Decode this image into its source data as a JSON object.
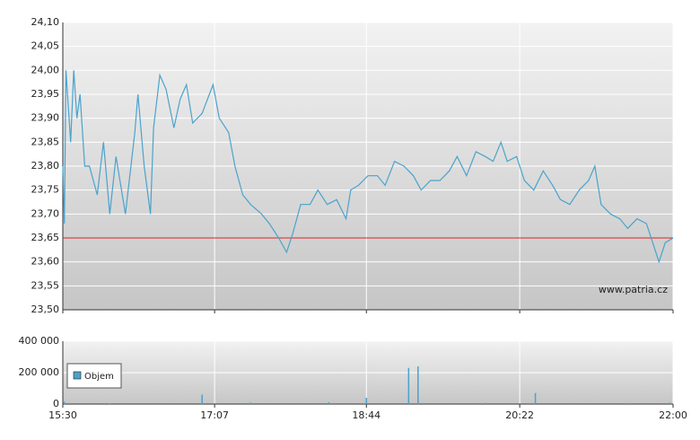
{
  "chart_data": [
    {
      "type": "line",
      "x": [
        "15:30",
        "15:31",
        "15:32",
        "15:35",
        "15:37",
        "15:39",
        "15:41",
        "15:44",
        "15:47",
        "15:52",
        "15:56",
        "16:00",
        "16:04",
        "16:10",
        "16:16",
        "16:18",
        "16:22",
        "16:26",
        "16:28",
        "16:32",
        "16:36",
        "16:41",
        "16:45",
        "16:49",
        "16:53",
        "16:59",
        "17:06",
        "17:10",
        "17:16",
        "17:20",
        "17:25",
        "17:30",
        "17:37",
        "17:42",
        "17:48",
        "17:53",
        "17:57",
        "18:02",
        "18:08",
        "18:13",
        "18:19",
        "18:25",
        "18:31",
        "18:34",
        "18:39",
        "18:45",
        "18:51",
        "18:56",
        "19:02",
        "19:08",
        "19:14",
        "19:19",
        "19:25",
        "19:31",
        "19:37",
        "19:42",
        "19:48",
        "19:54",
        "20:00",
        "20:05",
        "20:10",
        "20:14",
        "20:20",
        "20:25",
        "20:31",
        "20:37",
        "20:43",
        "20:48",
        "20:54",
        "21:00",
        "21:06",
        "21:10",
        "21:14",
        "21:20",
        "21:26",
        "21:31",
        "21:37",
        "21:43",
        "21:47",
        "21:51",
        "21:55",
        "22:00"
      ],
      "values": [
        23.8,
        23.68,
        24.0,
        23.85,
        24.0,
        23.9,
        23.95,
        23.8,
        23.8,
        23.74,
        23.85,
        23.7,
        23.82,
        23.7,
        23.87,
        23.95,
        23.8,
        23.7,
        23.88,
        23.99,
        23.96,
        23.88,
        23.94,
        23.97,
        23.89,
        23.91,
        23.97,
        23.9,
        23.87,
        23.8,
        23.74,
        23.72,
        23.7,
        23.68,
        23.65,
        23.62,
        23.66,
        23.72,
        23.72,
        23.75,
        23.72,
        23.73,
        23.69,
        23.75,
        23.76,
        23.78,
        23.78,
        23.76,
        23.81,
        23.8,
        23.78,
        23.75,
        23.77,
        23.77,
        23.79,
        23.82,
        23.78,
        23.83,
        23.82,
        23.81,
        23.85,
        23.81,
        23.82,
        23.77,
        23.75,
        23.79,
        23.76,
        23.73,
        23.72,
        23.75,
        23.77,
        23.8,
        23.72,
        23.7,
        23.69,
        23.67,
        23.69,
        23.68,
        23.64,
        23.6,
        23.64,
        23.65
      ],
      "color": "#4aa3cc",
      "ylim": [
        23.5,
        24.1
      ],
      "yticks": [
        {
          "value": 23.5,
          "label": "23,50"
        },
        {
          "value": 23.55,
          "label": "23,55"
        },
        {
          "value": 23.6,
          "label": "23,60"
        },
        {
          "value": 23.65,
          "label": "23,65"
        },
        {
          "value": 23.7,
          "label": "23,70"
        },
        {
          "value": 23.75,
          "label": "23,75"
        },
        {
          "value": 23.8,
          "label": "23,80"
        },
        {
          "value": 23.85,
          "label": "23,85"
        },
        {
          "value": 23.9,
          "label": "23,90"
        },
        {
          "value": 23.95,
          "label": "23,95"
        },
        {
          "value": 24.0,
          "label": "24,00"
        },
        {
          "value": 24.05,
          "label": "24,05"
        },
        {
          "value": 24.1,
          "label": "24,10"
        }
      ],
      "xlim": [
        "15:30",
        "22:00"
      ],
      "xticks": [
        "15:30",
        "17:07",
        "18:44",
        "20:22",
        "22:00"
      ],
      "reference_line": {
        "value": 23.65,
        "color": "#dd2222"
      },
      "annotation": "www.patria.cz",
      "grid": true
    },
    {
      "type": "bar",
      "x": [
        "15:31",
        "16:00",
        "16:59",
        "17:30",
        "18:20",
        "18:44",
        "19:11",
        "19:17",
        "20:00",
        "20:32",
        "21:30",
        "21:58"
      ],
      "series": [
        {
          "name": "Objem",
          "color": "#4aa3cc",
          "values": [
            15000,
            5000,
            60000,
            10000,
            12000,
            40000,
            230000,
            240000,
            8000,
            70000,
            6000,
            10000
          ]
        }
      ],
      "ylim": [
        0,
        400000
      ],
      "yticks": [
        0,
        {
          "value": 200000,
          "label": "200 000"
        },
        {
          "value": 400000,
          "label": "400 000"
        }
      ],
      "xlim": [
        "15:30",
        "22:00"
      ],
      "xticks": [
        "15:30",
        "17:07",
        "18:44",
        "20:22",
        "22:00"
      ],
      "legend": "upper-left",
      "grid": true
    }
  ]
}
